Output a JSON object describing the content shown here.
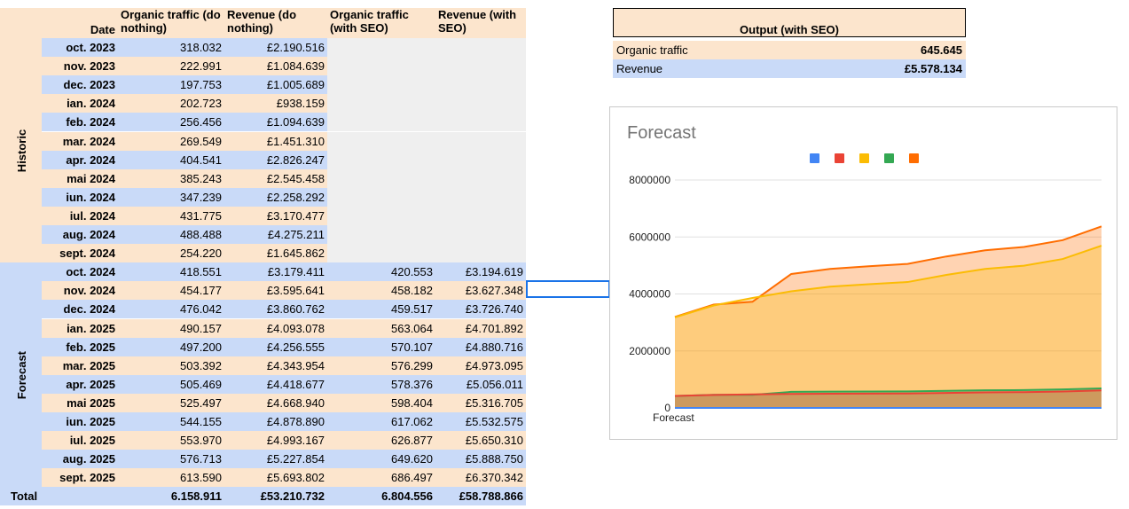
{
  "table": {
    "headers": {
      "date": "Date",
      "organic_nothing": "Organic traffic (do nothing)",
      "revenue_nothing": "Revenue (do nothing)",
      "organic_seo": "Organic traffic (with SEO)",
      "revenue_seo": "Revenue (with SEO)"
    },
    "groups": {
      "historic": "Historic",
      "forecast": "Forecast"
    },
    "historic_rows": [
      [
        "oct. 2023",
        "318.032",
        "£2.190.516"
      ],
      [
        "nov. 2023",
        "222.991",
        "£1.084.639"
      ],
      [
        "dec. 2023",
        "197.753",
        "£1.005.689"
      ],
      [
        "ian. 2024",
        "202.723",
        "£938.159"
      ],
      [
        "feb. 2024",
        "256.456",
        "£1.094.639"
      ],
      [
        "mar. 2024",
        "269.549",
        "£1.451.310"
      ],
      [
        "apr. 2024",
        "404.541",
        "£2.826.247"
      ],
      [
        "mai 2024",
        "385.243",
        "£2.545.458"
      ],
      [
        "iun. 2024",
        "347.239",
        "£2.258.292"
      ],
      [
        "iul. 2024",
        "431.775",
        "£3.170.477"
      ],
      [
        "aug. 2024",
        "488.488",
        "£4.275.211"
      ],
      [
        "sept. 2024",
        "254.220",
        "£1.645.862"
      ]
    ],
    "forecast_rows": [
      [
        "oct. 2024",
        "418.551",
        "£3.179.411",
        "420.553",
        "£3.194.619"
      ],
      [
        "nov. 2024",
        "454.177",
        "£3.595.641",
        "458.182",
        "£3.627.348"
      ],
      [
        "dec. 2024",
        "476.042",
        "£3.860.762",
        "459.517",
        "£3.726.740"
      ],
      [
        "ian. 2025",
        "490.157",
        "£4.093.078",
        "563.064",
        "£4.701.892"
      ],
      [
        "feb. 2025",
        "497.200",
        "£4.256.555",
        "570.107",
        "£4.880.716"
      ],
      [
        "mar. 2025",
        "503.392",
        "£4.343.954",
        "576.299",
        "£4.973.095"
      ],
      [
        "apr. 2025",
        "505.469",
        "£4.418.677",
        "578.376",
        "£5.056.011"
      ],
      [
        "mai 2025",
        "525.497",
        "£4.668.940",
        "598.404",
        "£5.316.705"
      ],
      [
        "iun. 2025",
        "544.155",
        "£4.878.890",
        "617.062",
        "£5.532.575"
      ],
      [
        "iul. 2025",
        "553.970",
        "£4.993.167",
        "626.877",
        "£5.650.310"
      ],
      [
        "aug. 2025",
        "576.713",
        "£5.227.854",
        "649.620",
        "£5.888.750"
      ],
      [
        "sept. 2025",
        "613.590",
        "£5.693.802",
        "686.497",
        "£6.370.342"
      ]
    ],
    "total": {
      "label": "Total",
      "organic_nothing": "6.158.911",
      "revenue_nothing": "£53.210.732",
      "organic_seo": "6.804.556",
      "revenue_seo": "£58.788.866"
    }
  },
  "output": {
    "title": "Output (with SEO)",
    "rows": [
      {
        "label": "Organic traffic",
        "value": "645.645"
      },
      {
        "label": "Revenue",
        "value": "£5.578.134"
      }
    ]
  },
  "colors": {
    "peach": "#fce5cd",
    "blue": "#c9daf8",
    "grey": "#efefef",
    "header_peach": "#fce5cd"
  },
  "chart_data": {
    "type": "area",
    "title": "Forecast",
    "xlabel": "",
    "x_tick_labels": [
      "Forecast"
    ],
    "ylabel": "",
    "ylim": [
      0,
      8000000
    ],
    "y_ticks": [
      "0",
      "2000000",
      "4000000",
      "6000000",
      "8000000"
    ],
    "grid": true,
    "legend_position": "top",
    "legend_colors": [
      "#4285f4",
      "#ea4335",
      "#fbbc04",
      "#34a853",
      "#ff6d01"
    ],
    "series": [
      {
        "color": "#4285f4",
        "values": [
          0,
          0,
          0,
          0,
          0,
          0,
          0,
          0,
          0,
          0,
          0,
          0
        ]
      },
      {
        "color": "#ea4335",
        "values": [
          418551,
          454177,
          476042,
          490157,
          497200,
          503392,
          505469,
          525497,
          544155,
          553970,
          576713,
          613590
        ]
      },
      {
        "color": "#fbbc04",
        "values": [
          3179411,
          3595641,
          3860762,
          4093078,
          4256555,
          4343954,
          4418677,
          4668940,
          4878890,
          4993167,
          5227854,
          5693802
        ]
      },
      {
        "color": "#34a853",
        "values": [
          420553,
          458182,
          459517,
          563064,
          570107,
          576299,
          578376,
          598404,
          617062,
          626877,
          649620,
          686497
        ]
      },
      {
        "color": "#ff6d01",
        "values": [
          3194619,
          3627348,
          3726740,
          4701892,
          4880716,
          4973095,
          5056011,
          5316705,
          5532575,
          5650310,
          5888750,
          6370342
        ]
      }
    ]
  }
}
